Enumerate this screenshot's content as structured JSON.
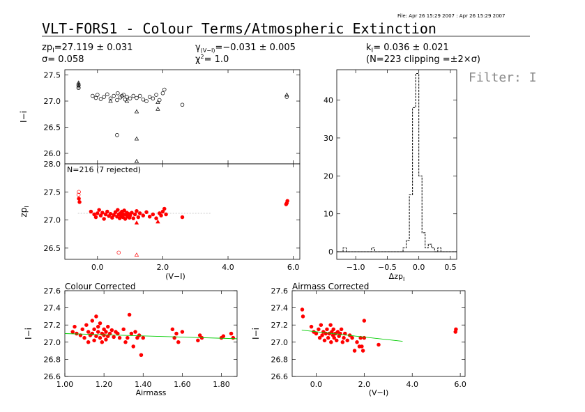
{
  "header": {
    "file_line": "File: Apr 26 15:29 2007 : Apr 26 15:29 2007",
    "title": "VLT-FORS1 - Colour Terms/Atmospheric Extinction",
    "zp_label": "zp",
    "zp_sub": "I",
    "zp_value": "=27.119 ± 0.031",
    "sigma_text": "σ=  0.058",
    "gamma_label": "γ",
    "gamma_sub": "(V−I)",
    "gamma_value": "=−0.031 ± 0.005",
    "chi_label": "χ",
    "chi_sup": "2",
    "chi_value": "=   1.0",
    "k_label": "k",
    "k_sub": "I",
    "k_value": "= 0.036 ± 0.021",
    "n_text": "(N=223 clipping =±2×σ)",
    "filter": "Filter: I"
  },
  "colors": {
    "points": "#ff0000",
    "fit_line": "#00cc00",
    "hist": "#000000",
    "axes": "#000000"
  },
  "chart_data": [
    {
      "id": "top_left",
      "type": "scatter",
      "ylabel": "I−i",
      "xlim": [
        -1.0,
        6.2
      ],
      "ylim": [
        25.8,
        27.6
      ],
      "yticks": [
        26.0,
        26.5,
        27.0,
        27.5
      ],
      "ytick_labels": [
        "26.0",
        "26.5",
        "27.0",
        "27.5"
      ],
      "circles": [
        [
          -0.58,
          27.25
        ],
        [
          -0.58,
          27.3
        ],
        [
          -0.05,
          27.06
        ],
        [
          -0.15,
          27.1
        ],
        [
          0.0,
          27.12
        ],
        [
          0.1,
          27.04
        ],
        [
          0.2,
          27.08
        ],
        [
          0.3,
          27.13
        ],
        [
          0.4,
          27.05
        ],
        [
          0.5,
          27.1
        ],
        [
          0.6,
          27.02
        ],
        [
          0.62,
          27.15
        ],
        [
          0.7,
          27.07
        ],
        [
          0.75,
          27.1
        ],
        [
          0.8,
          27.12
        ],
        [
          0.85,
          27.03
        ],
        [
          0.9,
          27.08
        ],
        [
          1.0,
          27.05
        ],
        [
          1.1,
          27.1
        ],
        [
          1.2,
          27.06
        ],
        [
          1.3,
          27.1
        ],
        [
          1.4,
          27.03
        ],
        [
          1.5,
          27.0
        ],
        [
          1.6,
          27.08
        ],
        [
          1.7,
          27.05
        ],
        [
          1.8,
          27.12
        ],
        [
          1.9,
          27.02
        ],
        [
          2.0,
          27.15
        ],
        [
          2.05,
          27.22
        ],
        [
          2.6,
          26.93
        ],
        [
          0.6,
          26.35
        ],
        [
          5.8,
          27.08
        ]
      ],
      "triangles": [
        [
          -0.58,
          27.35
        ],
        [
          -0.58,
          27.32
        ],
        [
          -0.58,
          27.28
        ],
        [
          0.4,
          27.0
        ],
        [
          0.9,
          27.0
        ],
        [
          1.2,
          26.8
        ],
        [
          1.2,
          26.28
        ],
        [
          1.2,
          25.85
        ],
        [
          1.85,
          26.98
        ],
        [
          1.85,
          26.85
        ],
        [
          5.8,
          27.12
        ]
      ]
    },
    {
      "id": "middle_left",
      "type": "scatter",
      "ylabel": "zp",
      "ylabel_sub": "I",
      "annotation": "N=216 (7 rejected)",
      "xlabel": "(V−I)",
      "xlim": [
        -1.0,
        6.2
      ],
      "ylim": [
        26.3,
        28.0
      ],
      "yticks": [
        26.5,
        27.0,
        27.5,
        28.0
      ],
      "ytick_labels": [
        "26.5",
        "27.0",
        "27.5",
        "28.0"
      ],
      "xticks": [
        0.0,
        2.0,
        4.0,
        6.0
      ],
      "xtick_labels": [
        "0.0",
        "2.0",
        "4.0",
        "6.0"
      ],
      "zp_line": {
        "x": [
          -0.6,
          3.5
        ],
        "y": 27.119
      },
      "points": [
        [
          -0.57,
          27.38
        ],
        [
          -0.55,
          27.32
        ],
        [
          -0.2,
          27.15
        ],
        [
          -0.1,
          27.1
        ],
        [
          -0.05,
          27.05
        ],
        [
          0.0,
          27.12
        ],
        [
          0.05,
          27.18
        ],
        [
          0.1,
          27.08
        ],
        [
          0.15,
          27.13
        ],
        [
          0.2,
          27.02
        ],
        [
          0.25,
          27.1
        ],
        [
          0.3,
          27.15
        ],
        [
          0.35,
          27.07
        ],
        [
          0.4,
          27.11
        ],
        [
          0.45,
          27.04
        ],
        [
          0.5,
          27.09
        ],
        [
          0.55,
          27.14
        ],
        [
          0.6,
          27.06
        ],
        [
          0.62,
          27.18
        ],
        [
          0.65,
          27.1
        ],
        [
          0.68,
          27.03
        ],
        [
          0.7,
          27.12
        ],
        [
          0.72,
          27.08
        ],
        [
          0.75,
          27.15
        ],
        [
          0.78,
          27.05
        ],
        [
          0.8,
          27.1
        ],
        [
          0.82,
          27.17
        ],
        [
          0.85,
          27.02
        ],
        [
          0.88,
          27.09
        ],
        [
          0.9,
          27.13
        ],
        [
          0.92,
          27.06
        ],
        [
          0.95,
          27.11
        ],
        [
          0.98,
          27.04
        ],
        [
          1.0,
          27.08
        ],
        [
          1.05,
          27.13
        ],
        [
          1.1,
          27.03
        ],
        [
          1.15,
          27.1
        ],
        [
          1.2,
          27.16
        ],
        [
          1.25,
          27.05
        ],
        [
          1.3,
          27.12
        ],
        [
          1.4,
          27.08
        ],
        [
          1.5,
          27.14
        ],
        [
          1.6,
          27.06
        ],
        [
          1.7,
          27.1
        ],
        [
          1.8,
          27.03
        ],
        [
          1.9,
          27.12
        ],
        [
          1.95,
          27.08
        ],
        [
          2.0,
          27.15
        ],
        [
          2.05,
          27.2
        ],
        [
          2.1,
          27.1
        ],
        [
          2.6,
          27.05
        ],
        [
          5.8,
          27.3
        ],
        [
          5.82,
          27.34
        ],
        [
          5.78,
          27.28
        ]
      ],
      "red_triangles": [
        [
          1.2,
          26.95
        ],
        [
          1.85,
          26.97
        ]
      ],
      "rejected_circles": [
        [
          -0.57,
          27.5
        ],
        [
          -0.58,
          27.45
        ],
        [
          0.65,
          26.42
        ]
      ],
      "rejected_triangles": [
        [
          1.2,
          26.38
        ]
      ]
    },
    {
      "id": "histogram",
      "type": "bar",
      "xlabel": "Δzp",
      "xlabel_sub": "I",
      "xlim": [
        -1.3,
        0.6
      ],
      "ylim": [
        -2,
        48
      ],
      "xticks": [
        -1.0,
        -0.5,
        0.0,
        0.5
      ],
      "xtick_labels": [
        "−1.0",
        "−0.5",
        "0.0",
        "0.5"
      ],
      "yticks": [
        0,
        10,
        20,
        30,
        40
      ],
      "ytick_labels": [
        "0",
        "10",
        "20",
        "30",
        "40"
      ],
      "bin_edges": [
        -1.3,
        -1.25,
        -1.2,
        -1.15,
        -1.1,
        -1.05,
        -1.0,
        -0.95,
        -0.9,
        -0.85,
        -0.8,
        -0.75,
        -0.7,
        -0.65,
        -0.6,
        -0.55,
        -0.5,
        -0.45,
        -0.4,
        -0.35,
        -0.3,
        -0.25,
        -0.2,
        -0.15,
        -0.1,
        -0.05,
        0.0,
        0.05,
        0.1,
        0.15,
        0.2,
        0.25,
        0.3,
        0.35,
        0.4,
        0.45,
        0.5,
        0.55,
        0.6
      ],
      "counts": [
        0,
        0,
        1,
        0,
        0,
        0,
        0,
        0,
        0,
        0,
        0,
        1,
        0,
        0,
        0,
        0,
        0,
        0,
        0,
        0,
        0,
        1,
        3,
        15,
        38,
        47,
        20,
        5,
        1,
        2,
        1,
        0,
        1,
        0,
        0,
        0,
        0,
        0
      ]
    },
    {
      "id": "colour_corrected",
      "type": "scatter",
      "title": "Colour Corrected",
      "xlabel": "Airmass",
      "ylabel": "I−i",
      "xlim": [
        1.0,
        1.88
      ],
      "ylim": [
        26.6,
        27.6
      ],
      "xticks": [
        1.0,
        1.2,
        1.4,
        1.6,
        1.8
      ],
      "xtick_labels": [
        "1.00",
        "1.20",
        "1.40",
        "1.60",
        "1.80"
      ],
      "yticks": [
        26.6,
        26.8,
        27.0,
        27.2,
        27.4,
        27.6
      ],
      "ytick_labels": [
        "26.6",
        "26.8",
        "27.0",
        "27.2",
        "27.4",
        "27.6"
      ],
      "fit_line": {
        "x": [
          1.0,
          1.88
        ],
        "y": [
          27.1,
          27.04
        ]
      },
      "points": [
        [
          1.04,
          27.12
        ],
        [
          1.05,
          27.18
        ],
        [
          1.06,
          27.1
        ],
        [
          1.08,
          27.08
        ],
        [
          1.09,
          27.15
        ],
        [
          1.1,
          27.05
        ],
        [
          1.11,
          27.2
        ],
        [
          1.12,
          27.12
        ],
        [
          1.12,
          27.0
        ],
        [
          1.13,
          27.08
        ],
        [
          1.14,
          27.25
        ],
        [
          1.14,
          27.1
        ],
        [
          1.15,
          27.15
        ],
        [
          1.15,
          27.02
        ],
        [
          1.16,
          27.3
        ],
        [
          1.16,
          27.07
        ],
        [
          1.17,
          27.12
        ],
        [
          1.17,
          27.18
        ],
        [
          1.18,
          27.05
        ],
        [
          1.18,
          27.22
        ],
        [
          1.19,
          27.1
        ],
        [
          1.19,
          27.0
        ],
        [
          1.2,
          27.15
        ],
        [
          1.2,
          27.08
        ],
        [
          1.21,
          27.12
        ],
        [
          1.21,
          27.03
        ],
        [
          1.22,
          27.18
        ],
        [
          1.22,
          27.07
        ],
        [
          1.23,
          27.1
        ],
        [
          1.24,
          27.14
        ],
        [
          1.25,
          27.06
        ],
        [
          1.26,
          27.12
        ],
        [
          1.27,
          27.1
        ],
        [
          1.28,
          27.05
        ],
        [
          1.3,
          27.15
        ],
        [
          1.31,
          27.0
        ],
        [
          1.32,
          27.05
        ],
        [
          1.33,
          27.32
        ],
        [
          1.34,
          27.1
        ],
        [
          1.35,
          26.95
        ],
        [
          1.36,
          27.12
        ],
        [
          1.37,
          27.05
        ],
        [
          1.38,
          27.08
        ],
        [
          1.39,
          26.85
        ],
        [
          1.4,
          27.05
        ],
        [
          1.55,
          27.15
        ],
        [
          1.56,
          27.05
        ],
        [
          1.57,
          27.1
        ],
        [
          1.58,
          27.0
        ],
        [
          1.6,
          27.12
        ],
        [
          1.68,
          27.02
        ],
        [
          1.69,
          27.08
        ],
        [
          1.7,
          27.05
        ],
        [
          1.8,
          27.05
        ],
        [
          1.81,
          27.07
        ],
        [
          1.85,
          27.1
        ],
        [
          1.86,
          27.05
        ]
      ]
    },
    {
      "id": "airmass_corrected",
      "type": "scatter",
      "title": "Airmass Corrected",
      "xlabel": "(V−I)",
      "ylabel": "I−i",
      "xlim": [
        -1.0,
        6.2
      ],
      "ylim": [
        26.6,
        27.6
      ],
      "xticks": [
        0.0,
        2.0,
        4.0,
        6.0
      ],
      "xtick_labels": [
        "0.0",
        "2.0",
        "4.0",
        "6.0"
      ],
      "yticks": [
        26.6,
        26.8,
        27.0,
        27.2,
        27.4,
        27.6
      ],
      "ytick_labels": [
        "26.6",
        "26.8",
        "27.0",
        "27.2",
        "27.4",
        "27.6"
      ],
      "fit_line": {
        "x": [
          -0.6,
          3.6
        ],
        "y": [
          27.14,
          27.01
        ]
      },
      "points": [
        [
          -0.58,
          27.38
        ],
        [
          -0.55,
          27.3
        ],
        [
          -0.2,
          27.18
        ],
        [
          -0.1,
          27.12
        ],
        [
          0.0,
          27.1
        ],
        [
          0.1,
          27.15
        ],
        [
          0.15,
          27.05
        ],
        [
          0.2,
          27.2
        ],
        [
          0.25,
          27.08
        ],
        [
          0.3,
          27.12
        ],
        [
          0.35,
          27.02
        ],
        [
          0.4,
          27.1
        ],
        [
          0.45,
          27.15
        ],
        [
          0.5,
          27.05
        ],
        [
          0.55,
          27.1
        ],
        [
          0.6,
          27.2
        ],
        [
          0.62,
          27.0
        ],
        [
          0.65,
          27.12
        ],
        [
          0.7,
          27.08
        ],
        [
          0.72,
          27.15
        ],
        [
          0.75,
          27.05
        ],
        [
          0.8,
          27.1
        ],
        [
          0.85,
          27.02
        ],
        [
          0.9,
          27.12
        ],
        [
          0.95,
          27.07
        ],
        [
          1.0,
          27.1
        ],
        [
          1.05,
          27.15
        ],
        [
          1.1,
          27.0
        ],
        [
          1.15,
          27.05
        ],
        [
          1.2,
          27.1
        ],
        [
          1.3,
          27.02
        ],
        [
          1.4,
          27.08
        ],
        [
          1.5,
          27.05
        ],
        [
          1.6,
          26.9
        ],
        [
          1.7,
          27.0
        ],
        [
          1.8,
          26.95
        ],
        [
          1.85,
          27.05
        ],
        [
          1.9,
          26.95
        ],
        [
          1.95,
          26.9
        ],
        [
          2.0,
          27.05
        ],
        [
          2.0,
          27.25
        ],
        [
          2.6,
          26.97
        ],
        [
          5.8,
          27.12
        ],
        [
          5.82,
          27.15
        ]
      ]
    }
  ]
}
